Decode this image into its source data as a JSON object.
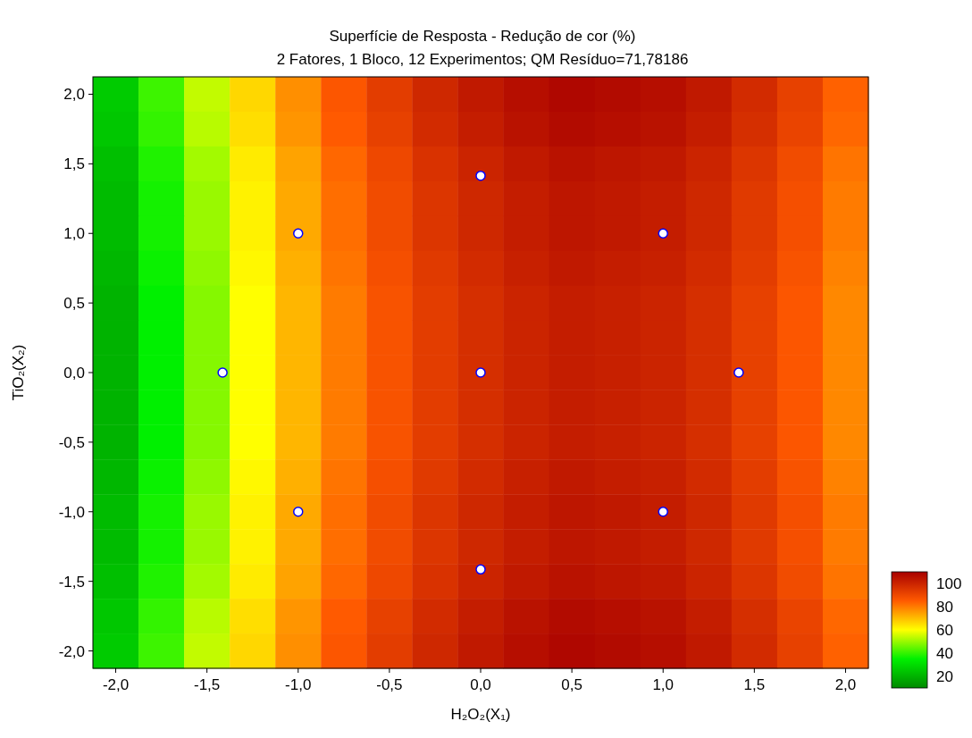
{
  "chart_data": {
    "type": "heatmap",
    "title": "Superfície de Resposta - Redução de cor (%)",
    "subtitle": "2 Fatores, 1 Bloco, 12 Experimentos; QM Resíduo=71,78186",
    "xlabel": "H₂O₂(X₁)",
    "ylabel": "TiO₂(X₂)",
    "categories": [
      "-2,0",
      null,
      "-1,5",
      null,
      "-1,0",
      null,
      "-0,5",
      null,
      "0,0",
      null,
      "0,5",
      null,
      "1,0",
      null,
      "1,5",
      null,
      "2,0"
    ],
    "y_categories": [
      "2,0",
      null,
      "1,5",
      null,
      "1,0",
      null,
      "0,5",
      null,
      "0,0",
      null,
      "-0,5",
      null,
      "-1,0",
      null,
      "-1,5",
      null,
      "-2,0"
    ],
    "cells": [
      [
        26,
        41,
        54,
        66,
        77,
        86,
        93,
        99,
        103,
        106,
        108,
        107,
        106,
        103,
        98,
        92,
        84
      ],
      [
        25,
        40,
        53,
        65,
        76,
        85,
        92,
        98,
        102,
        105,
        107,
        106,
        105,
        102,
        97,
        91,
        83
      ],
      [
        23,
        38,
        51,
        63,
        74,
        83,
        90,
        96,
        100,
        103,
        105,
        104,
        103,
        100,
        95,
        89,
        81
      ],
      [
        22,
        37,
        50,
        62,
        73,
        82,
        89,
        95,
        99,
        102,
        104,
        103,
        102,
        99,
        94,
        88,
        80
      ],
      [
        22,
        37,
        50,
        62,
        73,
        82,
        89,
        95,
        99,
        102,
        104,
        103,
        102,
        99,
        94,
        88,
        80
      ],
      [
        21,
        36,
        49,
        61,
        72,
        81,
        88,
        94,
        98,
        101,
        103,
        102,
        101,
        98,
        93,
        87,
        79
      ],
      [
        20,
        35,
        48,
        60,
        71,
        80,
        87,
        93,
        97,
        100,
        102,
        101,
        100,
        97,
        92,
        86,
        78
      ],
      [
        20,
        35,
        48,
        60,
        71,
        80,
        87,
        93,
        97,
        100,
        102,
        101,
        100,
        97,
        92,
        86,
        78
      ],
      [
        20,
        35,
        48,
        60,
        71,
        80,
        87,
        93,
        97,
        100,
        102,
        101,
        100,
        97,
        92,
        86,
        78
      ],
      [
        20,
        35,
        48,
        60,
        71,
        80,
        87,
        93,
        97,
        100,
        102,
        101,
        100,
        97,
        92,
        86,
        78
      ],
      [
        20,
        35,
        48,
        60,
        71,
        80,
        87,
        93,
        97,
        100,
        102,
        101,
        100,
        97,
        92,
        86,
        78
      ],
      [
        21,
        36,
        49,
        61,
        72,
        81,
        88,
        94,
        98,
        101,
        103,
        102,
        101,
        98,
        93,
        87,
        79
      ],
      [
        22,
        37,
        50,
        62,
        73,
        82,
        89,
        95,
        99,
        102,
        104,
        103,
        102,
        99,
        94,
        88,
        80
      ],
      [
        22,
        37,
        50,
        62,
        73,
        82,
        89,
        95,
        99,
        102,
        104,
        103,
        102,
        99,
        94,
        88,
        80
      ],
      [
        23,
        38,
        51,
        63,
        74,
        83,
        90,
        96,
        100,
        103,
        105,
        104,
        103,
        100,
        95,
        89,
        81
      ],
      [
        25,
        40,
        53,
        65,
        76,
        85,
        92,
        98,
        102,
        105,
        107,
        106,
        105,
        102,
        97,
        91,
        83
      ],
      [
        26,
        41,
        54,
        66,
        77,
        86,
        93,
        99,
        103,
        106,
        108,
        107,
        106,
        103,
        98,
        92,
        84
      ]
    ],
    "clim": [
      10,
      110
    ],
    "cticks": [
      20,
      40,
      60,
      80,
      100
    ],
    "colors": [
      "#008a00",
      "#00f000",
      "#ffff00",
      "#ff5a00",
      "#a80000"
    ],
    "grid": false
  }
}
